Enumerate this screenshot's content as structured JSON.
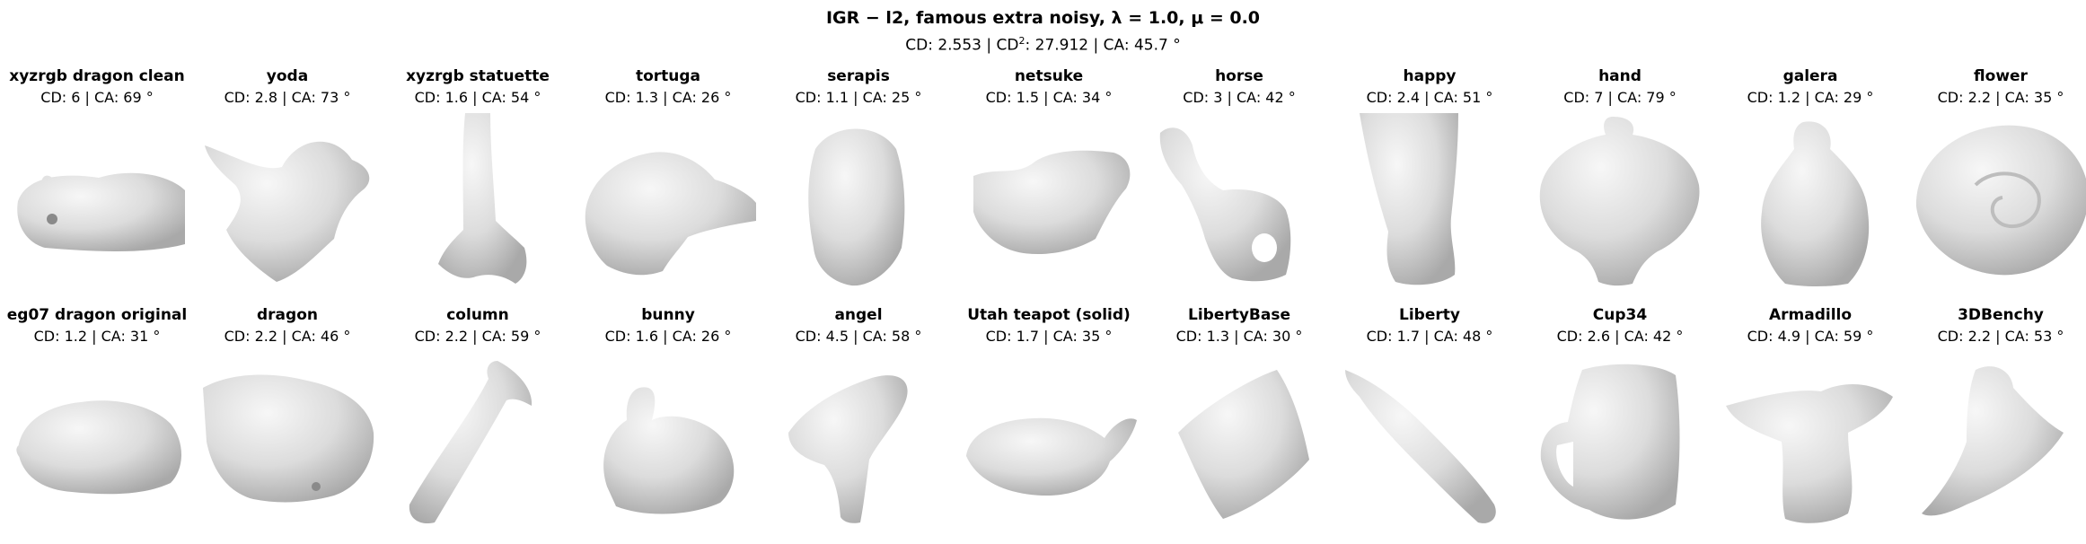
{
  "figure": {
    "title": "IGR − l2, famous extra noisy, λ = 1.0, μ = 0.0",
    "summary": {
      "cd_prefix": "CD: 2.553 | CD",
      "cd2_sup": "2",
      "cd2_rest": ": 27.912 | CA: 45.7 °"
    }
  },
  "panels": [
    {
      "name": "xyzrgb dragon clean",
      "metrics": "CD: 6 | CA: 69 °"
    },
    {
      "name": "yoda",
      "metrics": "CD: 2.8 | CA: 73 °"
    },
    {
      "name": "xyzrgb statuette",
      "metrics": "CD: 1.6 | CA: 54 °"
    },
    {
      "name": "tortuga",
      "metrics": "CD: 1.3 | CA: 26 °"
    },
    {
      "name": "serapis",
      "metrics": "CD: 1.1 | CA: 25 °"
    },
    {
      "name": "netsuke",
      "metrics": "CD: 1.5 | CA: 34 °"
    },
    {
      "name": "horse",
      "metrics": "CD: 3 | CA: 42 °"
    },
    {
      "name": "happy",
      "metrics": "CD: 2.4 | CA: 51 °"
    },
    {
      "name": "hand",
      "metrics": "CD: 7 | CA: 79 °"
    },
    {
      "name": "galera",
      "metrics": "CD: 1.2 | CA: 29 °"
    },
    {
      "name": "flower",
      "metrics": "CD: 2.2 | CA: 35 °"
    },
    {
      "name": "eg07 dragon original",
      "metrics": "CD: 1.2 | CA: 31 °"
    },
    {
      "name": "dragon",
      "metrics": "CD: 2.2 | CA: 46 °"
    },
    {
      "name": "column",
      "metrics": "CD: 2.2 | CA: 59 °"
    },
    {
      "name": "bunny",
      "metrics": "CD: 1.6 | CA: 26 °"
    },
    {
      "name": "angel",
      "metrics": "CD: 4.5 | CA: 58 °"
    },
    {
      "name": "Utah teapot (solid)",
      "metrics": "CD: 1.7 | CA: 35 °"
    },
    {
      "name": "LibertyBase",
      "metrics": "CD: 1.3 | CA: 30 °"
    },
    {
      "name": "Liberty",
      "metrics": "CD: 1.7 | CA: 48 °"
    },
    {
      "name": "Cup34",
      "metrics": "CD: 2.6 | CA: 42 °"
    },
    {
      "name": "Armadillo",
      "metrics": "CD: 4.9 | CA: 59 °"
    },
    {
      "name": "3DBenchy",
      "metrics": "CD: 2.2 | CA: 53 °"
    }
  ]
}
